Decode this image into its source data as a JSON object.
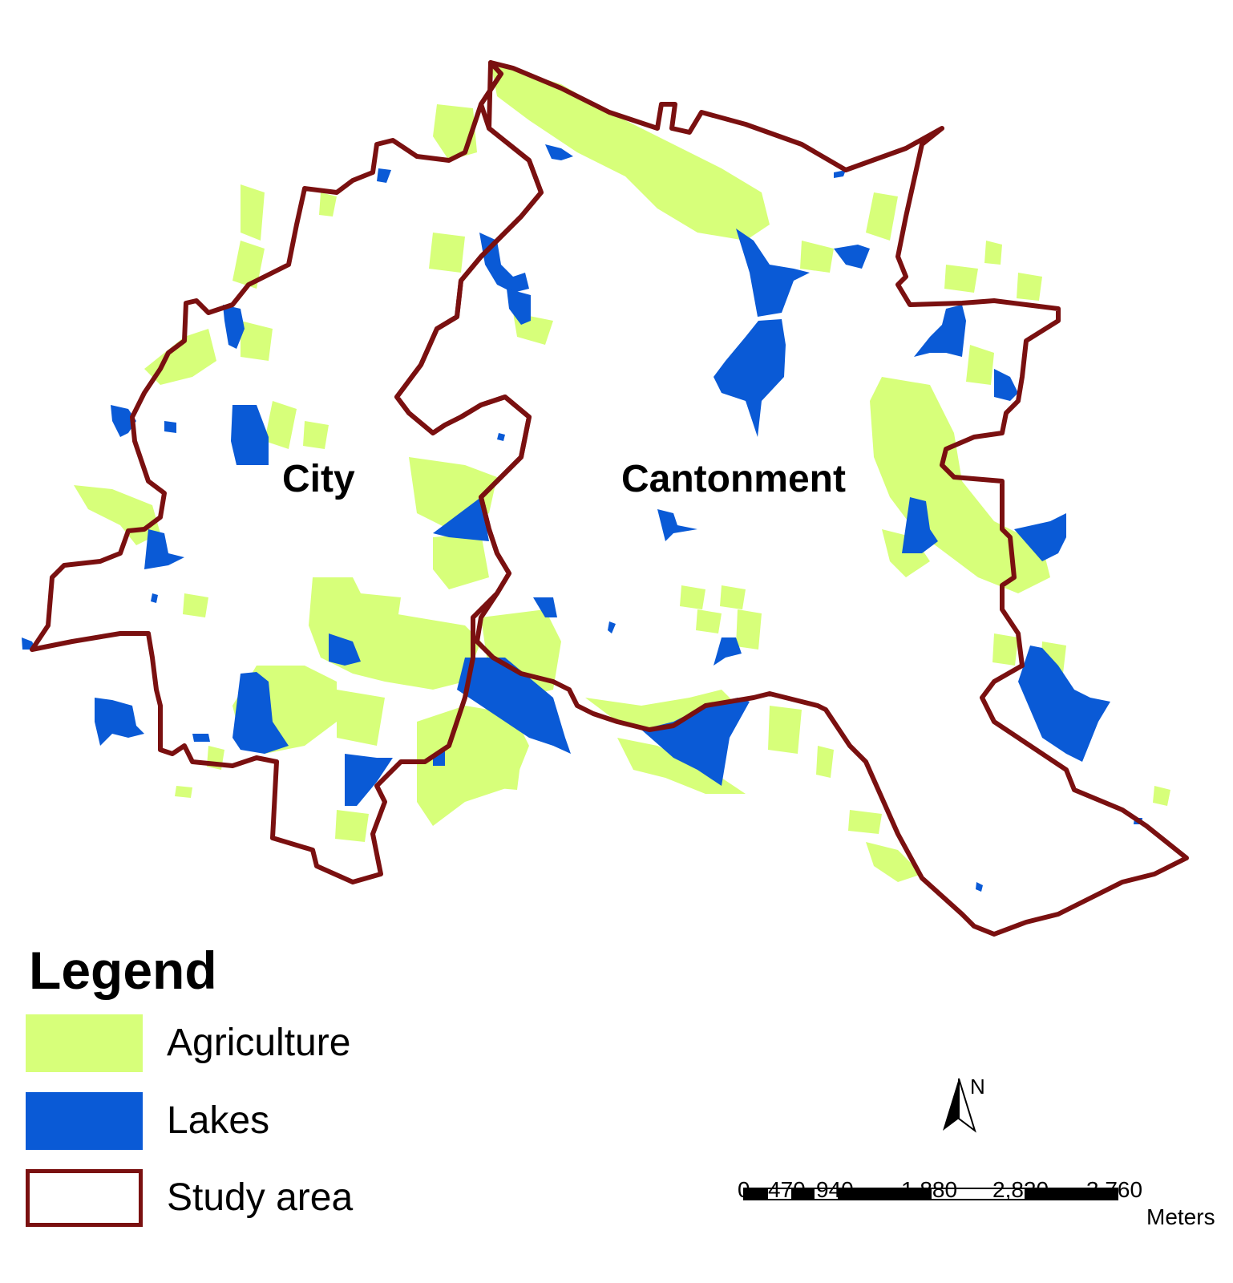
{
  "regions": {
    "city": "City",
    "cantonment": "Cantonment"
  },
  "legend": {
    "title": "Legend",
    "items": [
      {
        "label": "Agriculture",
        "color": "#d7ff7a",
        "kind": "fill"
      },
      {
        "label": "Lakes",
        "color": "#0a5ad6",
        "kind": "fill"
      },
      {
        "label": "Study area",
        "color": "#7a1010",
        "kind": "outline"
      }
    ]
  },
  "north_arrow": {
    "label": "N"
  },
  "scale_bar": {
    "ticks": [
      "0",
      "470",
      "940",
      "1,880",
      "2,820",
      "3,760"
    ],
    "units": "Meters"
  },
  "colors": {
    "agriculture": "#d7ff7a",
    "lakes": "#0a5ad6",
    "boundary": "#7a1010",
    "background": "#ffffff"
  }
}
